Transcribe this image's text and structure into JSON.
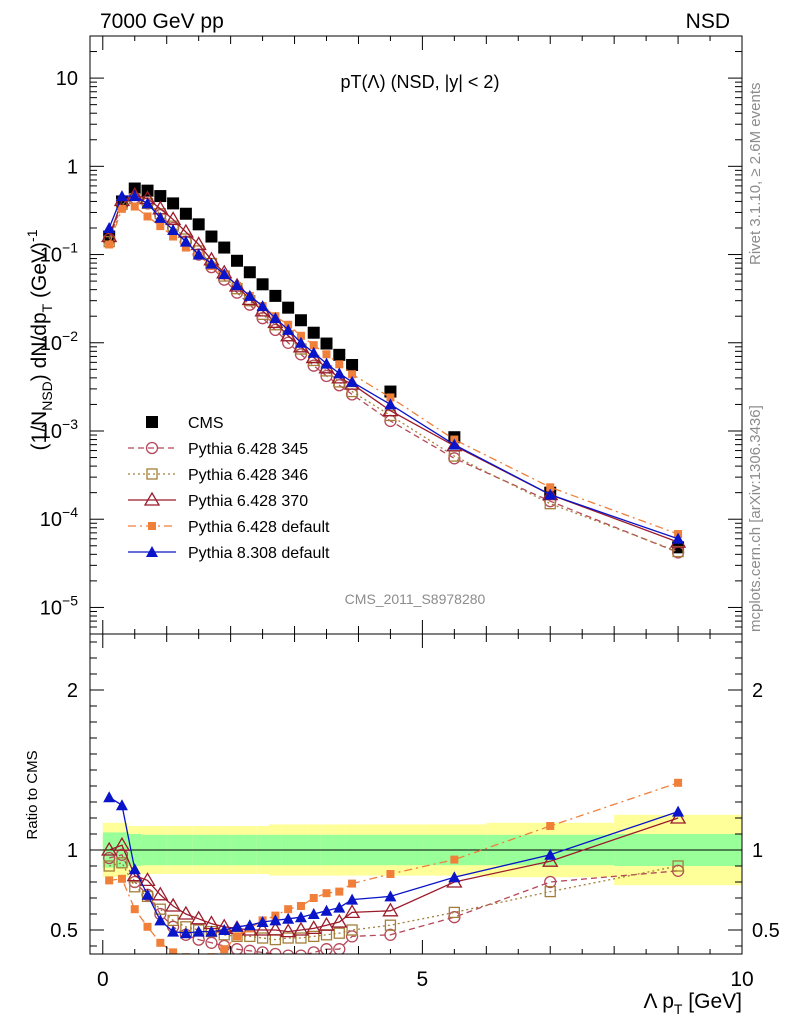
{
  "header": {
    "left": "7000 GeV pp",
    "right": "NSD"
  },
  "side_text": {
    "top": "Rivet 3.1.10, ≥ 2.6M events",
    "bottom": "mcplots.cern.ch [arXiv:1306.3436]"
  },
  "chart_data": [
    {
      "type": "scatter",
      "title": "pT(Λ) (NSD, |y| < 2)",
      "watermark": "CMS_2011_S8978280",
      "ylabel_parts": {
        "a": "(1/N",
        "sub1": "NSD",
        "b": ") dN/dp",
        "sub2": "T",
        "c": " (GeV)",
        "sup": "-1"
      },
      "yscale": "log",
      "ylim": [
        5e-06,
        30
      ],
      "xlim": [
        -0.2,
        10
      ],
      "y_ticks": [
        {
          "v": 10,
          "label": "10"
        },
        {
          "v": 1,
          "label": "1"
        },
        {
          "v": 0.1,
          "base": "10",
          "exp": "−1"
        },
        {
          "v": 0.01,
          "base": "10",
          "exp": "−2"
        },
        {
          "v": 0.001,
          "base": "10",
          "exp": "−3"
        },
        {
          "v": 0.0001,
          "base": "10",
          "exp": "−4"
        },
        {
          "v": 1e-05,
          "base": "10",
          "exp": "−5"
        }
      ],
      "legend_position": "lower-left",
      "x": [
        0.1,
        0.3,
        0.5,
        0.7,
        0.9,
        1.1,
        1.3,
        1.5,
        1.7,
        1.9,
        2.1,
        2.3,
        2.5,
        2.7,
        2.9,
        3.1,
        3.3,
        3.5,
        3.7,
        3.9,
        4.5,
        5.5,
        7.0,
        9.0
      ],
      "series": [
        {
          "name": "CMS",
          "color": "#000000",
          "marker": "square-filled",
          "line": "none",
          "values": [
            0.16,
            0.4,
            0.56,
            0.53,
            0.46,
            0.38,
            0.29,
            0.22,
            0.16,
            0.12,
            0.085,
            0.063,
            0.046,
            0.034,
            0.025,
            0.018,
            0.013,
            0.0098,
            0.0073,
            0.0056,
            0.0028,
            0.00085,
            0.0002,
            4.8e-05
          ]
        },
        {
          "name": "Pythia 6.428 345",
          "color": "#b5485a",
          "marker": "circle-open",
          "line": "dashed",
          "values": [
            0.15,
            0.38,
            0.44,
            0.38,
            0.28,
            0.2,
            0.14,
            0.1,
            0.072,
            0.052,
            0.037,
            0.027,
            0.019,
            0.014,
            0.01,
            0.0074,
            0.0055,
            0.0042,
            0.0033,
            0.0026,
            0.0013,
            0.00049,
            0.00016,
            4.2e-05
          ]
        },
        {
          "name": "Pythia 6.428 346",
          "color": "#a37e38",
          "marker": "square-open",
          "line": "dotted",
          "values": [
            0.14,
            0.37,
            0.43,
            0.38,
            0.29,
            0.21,
            0.15,
            0.11,
            0.079,
            0.057,
            0.041,
            0.03,
            0.021,
            0.016,
            0.012,
            0.0085,
            0.0063,
            0.0048,
            0.0036,
            0.0028,
            0.0015,
            0.00052,
            0.00015,
            4.3e-05
          ]
        },
        {
          "name": "Pythia 6.428 370",
          "color": "#9b1b2b",
          "marker": "triangle-open",
          "line": "solid",
          "values": [
            0.16,
            0.41,
            0.47,
            0.43,
            0.33,
            0.25,
            0.18,
            0.13,
            0.087,
            0.062,
            0.044,
            0.031,
            0.023,
            0.017,
            0.012,
            0.009,
            0.0068,
            0.0052,
            0.004,
            0.0034,
            0.0017,
            0.00068,
            0.00019,
            5.5e-05
          ]
        },
        {
          "name": "Pythia 6.428 default",
          "color": "#f07f3a",
          "marker": "square-filled-small",
          "line": "dashdot",
          "values": [
            0.13,
            0.33,
            0.35,
            0.27,
            0.21,
            0.16,
            0.12,
            0.097,
            0.074,
            0.058,
            0.044,
            0.034,
            0.026,
            0.02,
            0.016,
            0.012,
            0.0094,
            0.0074,
            0.0057,
            0.0044,
            0.0024,
            0.0008,
            0.00023,
            6.8e-05
          ]
        },
        {
          "name": "Pythia 8.308 default",
          "color": "#0a14c8",
          "marker": "triangle-filled",
          "line": "solid",
          "values": [
            0.2,
            0.46,
            0.46,
            0.38,
            0.26,
            0.19,
            0.14,
            0.1,
            0.079,
            0.06,
            0.045,
            0.034,
            0.026,
            0.019,
            0.014,
            0.01,
            0.0077,
            0.0058,
            0.0045,
            0.0036,
            0.002,
            0.0007,
            0.00019,
            6e-05
          ]
        }
      ]
    },
    {
      "type": "line",
      "ylabel": "Ratio to CMS",
      "xlabel": "Λ p",
      "xlabel_sub": "T",
      "xlabel_unit": " [GeV]",
      "ylim": [
        0.35,
        2.35
      ],
      "xlim": [
        -0.2,
        10
      ],
      "x_ticks": [
        0,
        5,
        10
      ],
      "y_ticks_major": [
        {
          "v": 0.5,
          "label": "0.5"
        },
        {
          "v": 1,
          "label": "1"
        },
        {
          "v": 2,
          "label": "2"
        }
      ],
      "bands": {
        "x_edges": [
          0,
          0.2,
          0.4,
          0.6,
          0.8,
          1.0,
          1.2,
          1.4,
          1.6,
          1.8,
          2.0,
          2.2,
          2.4,
          2.6,
          2.8,
          3.0,
          3.2,
          3.4,
          3.6,
          3.8,
          4.0,
          5.0,
          6.0,
          8.0,
          10.0
        ],
        "green_half": [
          0.11,
          0.11,
          0.1,
          0.095,
          0.095,
          0.095,
          0.095,
          0.095,
          0.095,
          0.095,
          0.095,
          0.095,
          0.095,
          0.095,
          0.095,
          0.095,
          0.095,
          0.095,
          0.095,
          0.095,
          0.095,
          0.095,
          0.095,
          0.1
        ],
        "yellow_half": [
          0.17,
          0.17,
          0.15,
          0.15,
          0.15,
          0.15,
          0.15,
          0.15,
          0.15,
          0.15,
          0.15,
          0.15,
          0.15,
          0.16,
          0.16,
          0.16,
          0.16,
          0.16,
          0.16,
          0.16,
          0.16,
          0.16,
          0.17,
          0.22
        ]
      },
      "x": [
        0.1,
        0.3,
        0.5,
        0.7,
        0.9,
        1.1,
        1.3,
        1.5,
        1.7,
        1.9,
        2.1,
        2.3,
        2.5,
        2.7,
        2.9,
        3.1,
        3.3,
        3.5,
        3.7,
        3.9,
        4.5,
        5.5,
        7.0,
        9.0
      ],
      "series": [
        {
          "name": "Pythia 6.428 345",
          "values": [
            0.95,
            0.97,
            0.8,
            0.72,
            0.6,
            0.52,
            0.47,
            0.44,
            0.42,
            0.4,
            0.38,
            0.37,
            0.36,
            0.35,
            0.34,
            0.34,
            0.36,
            0.38,
            0.38,
            0.46,
            0.47,
            0.58,
            0.8,
            0.87
          ]
        },
        {
          "name": "Pythia 6.428 346",
          "values": [
            0.9,
            0.92,
            0.77,
            0.71,
            0.63,
            0.56,
            0.52,
            0.5,
            0.49,
            0.47,
            0.46,
            0.46,
            0.45,
            0.44,
            0.45,
            0.45,
            0.46,
            0.47,
            0.48,
            0.5,
            0.53,
            0.61,
            0.74,
            0.9
          ]
        },
        {
          "name": "Pythia 6.428 370",
          "values": [
            1.0,
            1.03,
            0.84,
            0.81,
            0.72,
            0.65,
            0.6,
            0.57,
            0.54,
            0.52,
            0.51,
            0.5,
            0.5,
            0.5,
            0.49,
            0.5,
            0.51,
            0.53,
            0.55,
            0.61,
            0.62,
            0.8,
            0.93,
            1.2
          ]
        },
        {
          "name": "Pythia 6.428 default",
          "values": [
            0.81,
            0.82,
            0.63,
            0.52,
            0.42,
            0.36,
            0.33,
            0.3,
            0.33,
            0.38,
            0.46,
            0.51,
            0.56,
            0.59,
            0.63,
            0.65,
            0.7,
            0.73,
            0.74,
            0.79,
            0.85,
            0.94,
            1.15,
            1.42
          ]
        },
        {
          "name": "Pythia 8.308 default",
          "values": [
            1.33,
            1.28,
            0.88,
            0.72,
            0.56,
            0.49,
            0.48,
            0.49,
            0.49,
            0.5,
            0.52,
            0.53,
            0.55,
            0.56,
            0.57,
            0.58,
            0.6,
            0.62,
            0.64,
            0.69,
            0.71,
            0.83,
            0.97,
            1.24
          ]
        }
      ]
    }
  ]
}
